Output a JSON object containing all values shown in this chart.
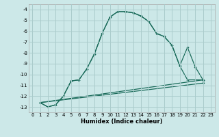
{
  "bg_color": "#cce8e8",
  "grid_color": "#aacccc",
  "line_color": "#1a6b5a",
  "xlim": [
    -0.5,
    23.5
  ],
  "ylim": [
    -13.5,
    -3.5
  ],
  "yticks": [
    -13,
    -12,
    -11,
    -10,
    -9,
    -8,
    -7,
    -6,
    -5,
    -4
  ],
  "xticks": [
    0,
    1,
    2,
    3,
    4,
    5,
    6,
    7,
    8,
    9,
    10,
    11,
    12,
    13,
    14,
    15,
    16,
    17,
    18,
    19,
    20,
    21,
    22,
    23
  ],
  "xlabel": "Humidex (Indice chaleur)",
  "curve1_x": [
    1,
    2,
    3,
    4,
    5,
    6,
    7,
    8,
    9,
    10,
    11,
    12,
    13,
    14,
    15,
    16,
    17,
    18,
    19,
    20,
    22
  ],
  "curve1_y": [
    -12.6,
    -13.0,
    -12.8,
    -12.0,
    -10.6,
    -10.5,
    -9.5,
    -8.1,
    -6.2,
    -4.7,
    -4.2,
    -4.2,
    -4.3,
    -4.6,
    -5.1,
    -6.2,
    -6.5,
    -7.3,
    -9.2,
    -10.5,
    -10.5
  ],
  "curve2_x": [
    1,
    2,
    3,
    4,
    5,
    6,
    7,
    8,
    9,
    10,
    11,
    12,
    13,
    14,
    15,
    16,
    17,
    18,
    19,
    20,
    21,
    22
  ],
  "curve2_y": [
    -12.6,
    -13.0,
    -12.8,
    -12.0,
    -10.6,
    -10.5,
    -9.5,
    -8.1,
    -6.2,
    -4.7,
    -4.2,
    -4.2,
    -4.3,
    -4.6,
    -5.1,
    -6.2,
    -6.5,
    -7.3,
    -9.2,
    -7.5,
    -9.3,
    -10.5
  ],
  "line3_x": [
    1,
    22
  ],
  "line3_y": [
    -12.6,
    -10.5
  ],
  "line4_x": [
    1,
    22
  ],
  "line4_y": [
    -12.6,
    -10.8
  ]
}
